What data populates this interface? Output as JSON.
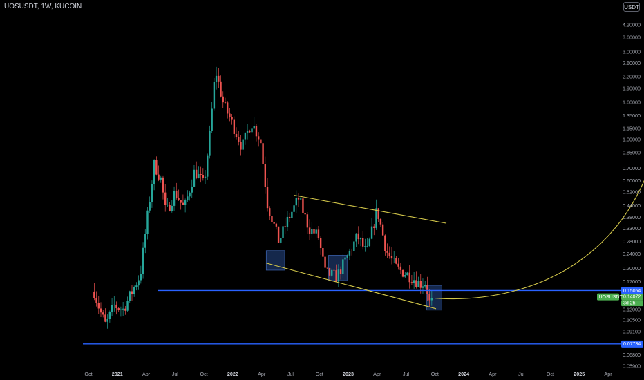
{
  "header": {
    "title": "UOSUSDT, 1W, KUCOIN",
    "currency_label": "USDT"
  },
  "chart_data": {
    "type": "candlestick",
    "x_axis": {
      "labels": [
        "Oct",
        "2021",
        "Apr",
        "Jul",
        "Oct",
        "2022",
        "Apr",
        "Jul",
        "Oct",
        "2023",
        "Apr",
        "Jul",
        "Oct",
        "2024",
        "Apr",
        "Jul",
        "Oct",
        "2025",
        "Apr"
      ],
      "bold": [
        "2021",
        "2022",
        "2023",
        "2024",
        "2025"
      ]
    },
    "y_axis": {
      "scale": "log",
      "ticks": [
        "0.05900",
        "0.06800",
        "0.07790",
        "0.09100",
        "0.10500",
        "0.12000",
        "0.14000",
        "0.17000",
        "0.20000",
        "0.24000",
        "0.28000",
        "0.33000",
        "0.38000",
        "0.44000",
        "0.52000",
        "0.60000",
        "0.70000",
        "0.85000",
        "1.00000",
        "1.15000",
        "1.35000",
        "1.60000",
        "1.90000",
        "2.20000",
        "2.60000",
        "3.00000",
        "3.60000",
        "4.20000"
      ]
    },
    "candle_path": [
      [
        2020.8,
        0.15
      ],
      [
        2020.85,
        0.118
      ],
      [
        2020.9,
        0.098
      ],
      [
        2020.97,
        0.126
      ],
      [
        2021.05,
        0.12
      ],
      [
        2021.12,
        0.146
      ],
      [
        2021.2,
        0.186
      ],
      [
        2021.27,
        0.425
      ],
      [
        2021.32,
        0.735
      ],
      [
        2021.38,
        0.605
      ],
      [
        2021.42,
        0.395
      ],
      [
        2021.5,
        0.52
      ],
      [
        2021.58,
        0.42
      ],
      [
        2021.67,
        0.68
      ],
      [
        2021.75,
        0.57
      ],
      [
        2021.8,
        1.05
      ],
      [
        2021.85,
        2.4
      ],
      [
        2021.92,
        1.55
      ],
      [
        2021.99,
        1.25
      ],
      [
        2022.08,
        0.91
      ],
      [
        2022.16,
        1.25
      ],
      [
        2022.24,
        1.0
      ],
      [
        2022.3,
        0.45
      ],
      [
        2022.4,
        0.28
      ],
      [
        2022.47,
        0.36
      ],
      [
        2022.57,
        0.48
      ],
      [
        2022.66,
        0.33
      ],
      [
        2022.74,
        0.3
      ],
      [
        2022.8,
        0.19
      ],
      [
        2022.9,
        0.18
      ],
      [
        2022.99,
        0.23
      ],
      [
        2023.08,
        0.3
      ],
      [
        2023.16,
        0.24
      ],
      [
        2023.25,
        0.42
      ],
      [
        2023.33,
        0.25
      ],
      [
        2023.42,
        0.2
      ],
      [
        2023.55,
        0.18
      ],
      [
        2023.62,
        0.165
      ],
      [
        2023.67,
        0.168
      ],
      [
        2023.71,
        0.125
      ],
      [
        2023.74,
        0.141
      ]
    ],
    "price_levels": [
      0.152,
      0.0779
    ],
    "trendlines": [
      {
        "from": [
          2022.53,
          0.5
        ],
        "to": [
          2023.85,
          0.352
        ]
      },
      {
        "from": [
          2022.29,
          0.214
        ],
        "to": [
          2023.76,
          0.121
        ]
      }
    ],
    "highlight_boxes": [
      {
        "x": [
          2022.29,
          2022.45
        ],
        "y": [
          0.196,
          0.25
        ]
      },
      {
        "x": [
          2022.83,
          2022.99
        ],
        "y": [
          0.172,
          0.236
        ]
      },
      {
        "x": [
          2023.68,
          2023.81
        ],
        "y": [
          0.119,
          0.162
        ]
      }
    ],
    "projection": {
      "direction": "up",
      "to": [
        2025.76,
        2.3
      ]
    },
    "price_labels": [
      {
        "text": "0.15054",
        "color": "#2962ff"
      },
      {
        "text": "0.14072",
        "color": "#4caf50"
      },
      {
        "text": "3d 2h",
        "color": "#4caf50"
      },
      {
        "text": "0.07734",
        "color": "#2962ff"
      }
    ],
    "symbol_tag": "UOSUSDT",
    "colors": {
      "up": "#26a69a",
      "down": "#ef5350",
      "level": "#2962ff",
      "trendline": "#d4c84a",
      "projection": "#d4c84a",
      "box": "#1c3566"
    }
  }
}
